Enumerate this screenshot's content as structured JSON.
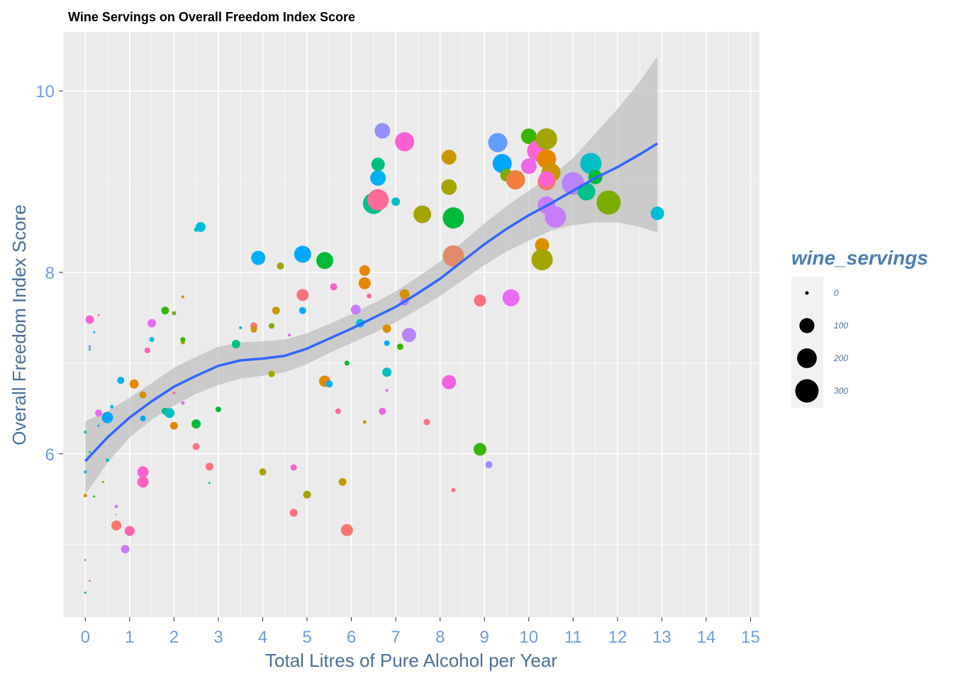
{
  "chart_data": {
    "type": "scatter",
    "title": "Wine Servings on Overall Freedom Index Score",
    "xlabel": "Total Litres of Pure Alcohol per Year",
    "ylabel": "Overall Freedom Index Score",
    "xlim": [
      -0.5,
      15.2
    ],
    "ylim": [
      4.2,
      10.65
    ],
    "x_ticks": [
      0,
      1,
      2,
      3,
      4,
      5,
      6,
      7,
      8,
      9,
      10,
      11,
      12,
      13,
      14,
      15
    ],
    "y_ticks": [
      6,
      8,
      10
    ],
    "grid": true,
    "legend": {
      "title": "wine_servings",
      "position": "right",
      "entries": [
        {
          "label": "0",
          "value": 0
        },
        {
          "label": "100",
          "value": 100
        },
        {
          "label": "200",
          "value": 200
        },
        {
          "label": "300",
          "value": 300
        }
      ]
    },
    "colors": {
      "panel": "#ebebeb",
      "grid_major": "#ffffff",
      "smooth_line": "#3366ff",
      "ribbon": "#bdbdbd"
    },
    "points": [
      {
        "x": 0.0,
        "y": 4.47,
        "size": 3,
        "color": "#00ba38"
      },
      {
        "x": 0.0,
        "y": 4.83,
        "size": 3,
        "color": "#9590ff"
      },
      {
        "x": 0.0,
        "y": 5.54,
        "size": 5,
        "color": "#e58700"
      },
      {
        "x": 0.0,
        "y": 5.8,
        "size": 4,
        "color": "#00b0f6"
      },
      {
        "x": 0.0,
        "y": 6.24,
        "size": 4,
        "color": "#00bfc4"
      },
      {
        "x": 0.1,
        "y": 4.6,
        "size": 3,
        "color": "#e76bf3"
      },
      {
        "x": 0.1,
        "y": 6.02,
        "size": 3,
        "color": "#00c19f"
      },
      {
        "x": 0.1,
        "y": 7.15,
        "size": 3,
        "color": "#00bf7d"
      },
      {
        "x": 0.1,
        "y": 7.18,
        "size": 4,
        "color": "#9590ff"
      },
      {
        "x": 0.1,
        "y": 7.48,
        "size": 12,
        "color": "#fd61d1"
      },
      {
        "x": 0.2,
        "y": 5.53,
        "size": 3,
        "color": "#39b600"
      },
      {
        "x": 0.2,
        "y": 7.34,
        "size": 3,
        "color": "#00b0f6"
      },
      {
        "x": 0.3,
        "y": 6.31,
        "size": 3,
        "color": "#00a9ff"
      },
      {
        "x": 0.3,
        "y": 6.45,
        "size": 10,
        "color": "#e76bf3"
      },
      {
        "x": 0.3,
        "y": 7.53,
        "size": 3,
        "color": "#ff62bc"
      },
      {
        "x": 0.4,
        "y": 5.69,
        "size": 3,
        "color": "#a3a500"
      },
      {
        "x": 0.5,
        "y": 5.93,
        "size": 5,
        "color": "#00bfc4"
      },
      {
        "x": 0.5,
        "y": 6.4,
        "size": 16,
        "color": "#00a5ff"
      },
      {
        "x": 0.6,
        "y": 6.52,
        "size": 5,
        "color": "#00bcd8"
      },
      {
        "x": 0.7,
        "y": 5.33,
        "size": 2,
        "color": "#7cae00"
      },
      {
        "x": 0.7,
        "y": 5.42,
        "size": 5,
        "color": "#c77cff"
      },
      {
        "x": 0.7,
        "y": 5.21,
        "size": 14,
        "color": "#f8766d"
      },
      {
        "x": 0.8,
        "y": 6.81,
        "size": 10,
        "color": "#00b0f6"
      },
      {
        "x": 0.9,
        "y": 4.95,
        "size": 12,
        "color": "#c77cff"
      },
      {
        "x": 1.0,
        "y": 5.15,
        "size": 14,
        "color": "#ff64b0"
      },
      {
        "x": 1.1,
        "y": 6.77,
        "size": 13,
        "color": "#e58700"
      },
      {
        "x": 1.3,
        "y": 5.69,
        "size": 16,
        "color": "#ff62bc"
      },
      {
        "x": 1.3,
        "y": 5.8,
        "size": 16,
        "color": "#fd61d1"
      },
      {
        "x": 1.3,
        "y": 6.39,
        "size": 8,
        "color": "#00a9ff"
      },
      {
        "x": 1.3,
        "y": 6.65,
        "size": 10,
        "color": "#d89000"
      },
      {
        "x": 1.4,
        "y": 7.14,
        "size": 8,
        "color": "#ff62bc"
      },
      {
        "x": 1.5,
        "y": 7.26,
        "size": 7,
        "color": "#00bcd8"
      },
      {
        "x": 1.5,
        "y": 7.44,
        "size": 12,
        "color": "#e76bf3"
      },
      {
        "x": 1.8,
        "y": 6.47,
        "size": 10,
        "color": "#00bf7d"
      },
      {
        "x": 1.8,
        "y": 7.58,
        "size": 11,
        "color": "#39b600"
      },
      {
        "x": 1.9,
        "y": 6.45,
        "size": 14,
        "color": "#00bfc4"
      },
      {
        "x": 2.0,
        "y": 6.67,
        "size": 4,
        "color": "#ff6a98"
      },
      {
        "x": 2.0,
        "y": 6.31,
        "size": 11,
        "color": "#e58700"
      },
      {
        "x": 2.0,
        "y": 7.55,
        "size": 6,
        "color": "#7cae00"
      },
      {
        "x": 2.2,
        "y": 6.56,
        "size": 5,
        "color": "#e76bf3"
      },
      {
        "x": 2.2,
        "y": 7.23,
        "size": 6,
        "color": "#a3a500"
      },
      {
        "x": 2.2,
        "y": 7.26,
        "size": 7,
        "color": "#39b600"
      },
      {
        "x": 2.2,
        "y": 7.73,
        "size": 4,
        "color": "#c99800"
      },
      {
        "x": 2.5,
        "y": 6.08,
        "size": 10,
        "color": "#fc717f"
      },
      {
        "x": 2.5,
        "y": 6.33,
        "size": 13,
        "color": "#00ba38"
      },
      {
        "x": 2.5,
        "y": 8.47,
        "size": 6,
        "color": "#00c19f"
      },
      {
        "x": 2.6,
        "y": 8.5,
        "size": 14,
        "color": "#00bcd8"
      },
      {
        "x": 2.8,
        "y": 5.68,
        "size": 3,
        "color": "#00bfc4"
      },
      {
        "x": 2.8,
        "y": 5.86,
        "size": 11,
        "color": "#fc717f"
      },
      {
        "x": 3.0,
        "y": 6.49,
        "size": 8,
        "color": "#00ba38"
      },
      {
        "x": 3.4,
        "y": 7.21,
        "size": 12,
        "color": "#00c08b"
      },
      {
        "x": 3.5,
        "y": 7.39,
        "size": 4,
        "color": "#00b0f6"
      },
      {
        "x": 3.8,
        "y": 7.41,
        "size": 10,
        "color": "#f8766d"
      },
      {
        "x": 3.8,
        "y": 7.37,
        "size": 9,
        "color": "#d89000"
      },
      {
        "x": 3.9,
        "y": 8.16,
        "size": 20,
        "color": "#00b0f6"
      },
      {
        "x": 4.0,
        "y": 5.8,
        "size": 10,
        "color": "#a3a500"
      },
      {
        "x": 4.2,
        "y": 6.88,
        "size": 9,
        "color": "#a3a500"
      },
      {
        "x": 4.2,
        "y": 7.41,
        "size": 8,
        "color": "#7cae00"
      },
      {
        "x": 4.3,
        "y": 7.58,
        "size": 11,
        "color": "#c99800"
      },
      {
        "x": 4.4,
        "y": 8.07,
        "size": 10,
        "color": "#a3a500"
      },
      {
        "x": 4.6,
        "y": 7.31,
        "size": 4,
        "color": "#ee61e3"
      },
      {
        "x": 4.7,
        "y": 5.35,
        "size": 11,
        "color": "#fc717f"
      },
      {
        "x": 4.7,
        "y": 5.85,
        "size": 9,
        "color": "#ff61c9"
      },
      {
        "x": 4.9,
        "y": 7.58,
        "size": 10,
        "color": "#00b0f6"
      },
      {
        "x": 4.9,
        "y": 7.75,
        "size": 17,
        "color": "#fc717f"
      },
      {
        "x": 4.9,
        "y": 8.2,
        "size": 24,
        "color": "#00a9ff"
      },
      {
        "x": 5.0,
        "y": 5.55,
        "size": 11,
        "color": "#a3a500"
      },
      {
        "x": 5.4,
        "y": 6.8,
        "size": 16,
        "color": "#e58700"
      },
      {
        "x": 5.4,
        "y": 8.13,
        "size": 24,
        "color": "#00ba38"
      },
      {
        "x": 5.5,
        "y": 6.77,
        "size": 10,
        "color": "#00b0f6"
      },
      {
        "x": 5.6,
        "y": 7.84,
        "size": 10,
        "color": "#ff61c9"
      },
      {
        "x": 5.7,
        "y": 6.47,
        "size": 8,
        "color": "#ff6a98"
      },
      {
        "x": 5.8,
        "y": 5.69,
        "size": 11,
        "color": "#c99800"
      },
      {
        "x": 5.9,
        "y": 5.16,
        "size": 17,
        "color": "#f8766d"
      },
      {
        "x": 5.9,
        "y": 7.0,
        "size": 7,
        "color": "#00ba38"
      },
      {
        "x": 6.1,
        "y": 7.59,
        "size": 14,
        "color": "#c77cff"
      },
      {
        "x": 6.2,
        "y": 7.44,
        "size": 12,
        "color": "#00bcd8"
      },
      {
        "x": 6.3,
        "y": 6.35,
        "size": 5,
        "color": "#c99800"
      },
      {
        "x": 6.3,
        "y": 7.88,
        "size": 17,
        "color": "#e58700"
      },
      {
        "x": 6.3,
        "y": 8.02,
        "size": 15,
        "color": "#e58700"
      },
      {
        "x": 6.4,
        "y": 7.74,
        "size": 7,
        "color": "#ff6a98"
      },
      {
        "x": 6.5,
        "y": 8.76,
        "size": 30,
        "color": "#00c08b"
      },
      {
        "x": 6.6,
        "y": 9.04,
        "size": 22,
        "color": "#00b0f6"
      },
      {
        "x": 6.6,
        "y": 9.19,
        "size": 19,
        "color": "#00bf7d"
      },
      {
        "x": 6.6,
        "y": 8.8,
        "size": 30,
        "color": "#ff6a98"
      },
      {
        "x": 6.7,
        "y": 6.47,
        "size": 10,
        "color": "#ee61e3"
      },
      {
        "x": 6.7,
        "y": 9.56,
        "size": 22,
        "color": "#9590ff"
      },
      {
        "x": 6.8,
        "y": 6.7,
        "size": 4,
        "color": "#e76bf3"
      },
      {
        "x": 6.8,
        "y": 6.9,
        "size": 13,
        "color": "#00bfc4"
      },
      {
        "x": 6.8,
        "y": 7.22,
        "size": 8,
        "color": "#00b0f6"
      },
      {
        "x": 6.8,
        "y": 7.38,
        "size": 12,
        "color": "#d89000"
      },
      {
        "x": 7.0,
        "y": 8.78,
        "size": 12,
        "color": "#00bfc4"
      },
      {
        "x": 7.1,
        "y": 7.18,
        "size": 9,
        "color": "#39b600"
      },
      {
        "x": 7.2,
        "y": 7.68,
        "size": 12,
        "color": "#b983ff"
      },
      {
        "x": 7.2,
        "y": 7.76,
        "size": 14,
        "color": "#d39200"
      },
      {
        "x": 7.2,
        "y": 9.44,
        "size": 27,
        "color": "#fd61d1"
      },
      {
        "x": 7.3,
        "y": 7.31,
        "size": 20,
        "color": "#b983ff"
      },
      {
        "x": 7.7,
        "y": 6.35,
        "size": 9,
        "color": "#fc717f"
      },
      {
        "x": 7.6,
        "y": 8.64,
        "size": 25,
        "color": "#a3a500"
      },
      {
        "x": 8.2,
        "y": 6.79,
        "size": 20,
        "color": "#ee61e3"
      },
      {
        "x": 8.2,
        "y": 8.94,
        "size": 22,
        "color": "#a3a500"
      },
      {
        "x": 8.2,
        "y": 9.27,
        "size": 21,
        "color": "#c99800"
      },
      {
        "x": 8.3,
        "y": 5.6,
        "size": 6,
        "color": "#fc717f"
      },
      {
        "x": 8.3,
        "y": 8.6,
        "size": 30,
        "color": "#00ba38"
      },
      {
        "x": 8.3,
        "y": 8.18,
        "size": 30,
        "color": "#e38a6a"
      },
      {
        "x": 8.9,
        "y": 6.05,
        "size": 18,
        "color": "#39b600"
      },
      {
        "x": 8.9,
        "y": 7.69,
        "size": 17,
        "color": "#fc717f"
      },
      {
        "x": 9.1,
        "y": 5.88,
        "size": 10,
        "color": "#9590ff"
      },
      {
        "x": 9.3,
        "y": 9.43,
        "size": 27,
        "color": "#619cff"
      },
      {
        "x": 9.4,
        "y": 9.2,
        "size": 27,
        "color": "#00a5ff"
      },
      {
        "x": 9.5,
        "y": 9.07,
        "size": 18,
        "color": "#7cae00"
      },
      {
        "x": 9.6,
        "y": 7.72,
        "size": 24,
        "color": "#e76bf3"
      },
      {
        "x": 9.7,
        "y": 9.02,
        "size": 27,
        "color": "#f07e3e"
      },
      {
        "x": 10.0,
        "y": 9.17,
        "size": 22,
        "color": "#ef67eb"
      },
      {
        "x": 10.0,
        "y": 9.5,
        "size": 22,
        "color": "#39b600"
      },
      {
        "x": 10.2,
        "y": 9.34,
        "size": 30,
        "color": "#ff64d4"
      },
      {
        "x": 10.3,
        "y": 8.3,
        "size": 20,
        "color": "#d89000"
      },
      {
        "x": 10.3,
        "y": 8.14,
        "size": 30,
        "color": "#a3a500"
      },
      {
        "x": 10.4,
        "y": 9.47,
        "size": 30,
        "color": "#a3a500"
      },
      {
        "x": 10.4,
        "y": 9.25,
        "size": 27,
        "color": "#e58700"
      },
      {
        "x": 10.5,
        "y": 9.1,
        "size": 27,
        "color": "#c99800"
      },
      {
        "x": 10.4,
        "y": 9.0,
        "size": 25,
        "color": "#f8766d"
      },
      {
        "x": 10.4,
        "y": 9.03,
        "size": 22,
        "color": "#fd61d1"
      },
      {
        "x": 10.4,
        "y": 8.74,
        "size": 25,
        "color": "#c77cff"
      },
      {
        "x": 10.6,
        "y": 8.61,
        "size": 30,
        "color": "#c77cff"
      },
      {
        "x": 11.0,
        "y": 8.98,
        "size": 32,
        "color": "#b983ff"
      },
      {
        "x": 11.3,
        "y": 8.89,
        "size": 25,
        "color": "#00c08b"
      },
      {
        "x": 11.4,
        "y": 9.2,
        "size": 30,
        "color": "#00bfc4"
      },
      {
        "x": 11.5,
        "y": 9.05,
        "size": 20,
        "color": "#00ba38"
      },
      {
        "x": 11.8,
        "y": 8.77,
        "size": 34,
        "color": "#7cae00"
      },
      {
        "x": 12.9,
        "y": 8.65,
        "size": 19,
        "color": "#00bcd8"
      }
    ],
    "smooth_line": [
      {
        "x": 0.0,
        "y": 5.92
      },
      {
        "x": 0.5,
        "y": 6.18
      },
      {
        "x": 1.0,
        "y": 6.4
      },
      {
        "x": 1.5,
        "y": 6.58
      },
      {
        "x": 2.0,
        "y": 6.74
      },
      {
        "x": 2.5,
        "y": 6.86
      },
      {
        "x": 3.0,
        "y": 6.97
      },
      {
        "x": 3.5,
        "y": 7.03
      },
      {
        "x": 4.0,
        "y": 7.05
      },
      {
        "x": 4.5,
        "y": 7.08
      },
      {
        "x": 5.0,
        "y": 7.16
      },
      {
        "x": 5.5,
        "y": 7.27
      },
      {
        "x": 6.0,
        "y": 7.38
      },
      {
        "x": 6.5,
        "y": 7.5
      },
      {
        "x": 7.0,
        "y": 7.62
      },
      {
        "x": 7.5,
        "y": 7.77
      },
      {
        "x": 8.0,
        "y": 7.93
      },
      {
        "x": 8.5,
        "y": 8.12
      },
      {
        "x": 9.0,
        "y": 8.31
      },
      {
        "x": 9.5,
        "y": 8.48
      },
      {
        "x": 10.0,
        "y": 8.63
      },
      {
        "x": 10.5,
        "y": 8.76
      },
      {
        "x": 11.0,
        "y": 8.9
      },
      {
        "x": 11.5,
        "y": 9.04
      },
      {
        "x": 12.0,
        "y": 9.16
      },
      {
        "x": 12.5,
        "y": 9.3
      },
      {
        "x": 12.9,
        "y": 9.42
      }
    ],
    "ribbon": [
      {
        "x": 0.0,
        "lo": 5.55,
        "hi": 6.36
      },
      {
        "x": 0.5,
        "lo": 5.9,
        "hi": 6.47
      },
      {
        "x": 1.0,
        "lo": 6.18,
        "hi": 6.62
      },
      {
        "x": 1.5,
        "lo": 6.38,
        "hi": 6.78
      },
      {
        "x": 2.0,
        "lo": 6.53,
        "hi": 6.95
      },
      {
        "x": 2.5,
        "lo": 6.66,
        "hi": 7.07
      },
      {
        "x": 3.0,
        "lo": 6.76,
        "hi": 7.18
      },
      {
        "x": 3.5,
        "lo": 6.83,
        "hi": 7.23
      },
      {
        "x": 4.0,
        "lo": 6.86,
        "hi": 7.24
      },
      {
        "x": 4.5,
        "lo": 6.9,
        "hi": 7.26
      },
      {
        "x": 5.0,
        "lo": 6.99,
        "hi": 7.33
      },
      {
        "x": 5.5,
        "lo": 7.11,
        "hi": 7.43
      },
      {
        "x": 6.0,
        "lo": 7.22,
        "hi": 7.54
      },
      {
        "x": 6.5,
        "lo": 7.33,
        "hi": 7.66
      },
      {
        "x": 7.0,
        "lo": 7.45,
        "hi": 7.79
      },
      {
        "x": 7.5,
        "lo": 7.59,
        "hi": 7.95
      },
      {
        "x": 8.0,
        "lo": 7.74,
        "hi": 8.12
      },
      {
        "x": 8.5,
        "lo": 7.91,
        "hi": 8.33
      },
      {
        "x": 9.0,
        "lo": 8.08,
        "hi": 8.54
      },
      {
        "x": 9.5,
        "lo": 8.23,
        "hi": 8.73
      },
      {
        "x": 10.0,
        "lo": 8.35,
        "hi": 8.9
      },
      {
        "x": 10.5,
        "lo": 8.46,
        "hi": 9.06
      },
      {
        "x": 11.0,
        "lo": 8.52,
        "hi": 9.26
      },
      {
        "x": 11.5,
        "lo": 8.55,
        "hi": 9.53
      },
      {
        "x": 12.0,
        "lo": 8.55,
        "hi": 9.8
      },
      {
        "x": 12.5,
        "lo": 8.5,
        "hi": 10.1
      },
      {
        "x": 12.9,
        "lo": 8.44,
        "hi": 10.38
      }
    ]
  }
}
